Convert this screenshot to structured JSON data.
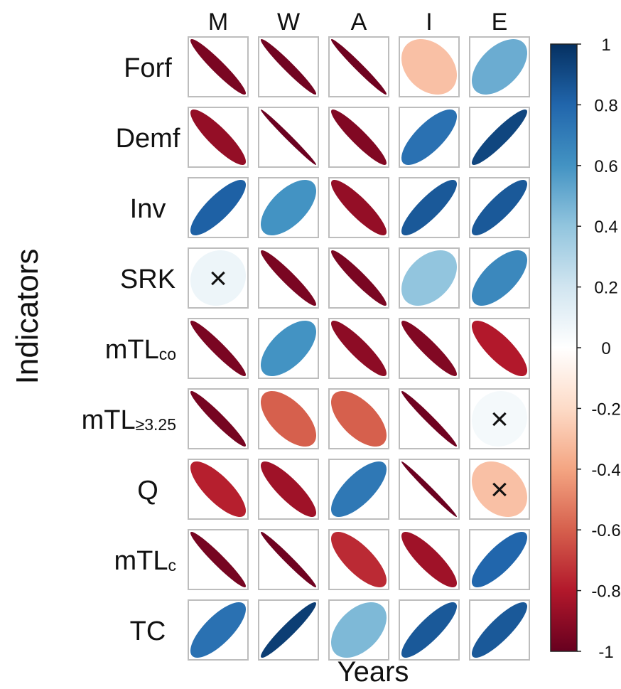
{
  "chart_data": {
    "type": "heatmap",
    "subtype": "correlation-ellipse",
    "xlabel": "Years",
    "ylabel": "Indicators",
    "columns": [
      "M",
      "W",
      "A",
      "I",
      "E"
    ],
    "rows": [
      {
        "label": "Forf",
        "label_sub": ""
      },
      {
        "label": "Demf",
        "label_sub": ""
      },
      {
        "label": "Inv",
        "label_sub": ""
      },
      {
        "label": "SRK",
        "label_sub": ""
      },
      {
        "label": "mTL",
        "label_sub": "co"
      },
      {
        "label": "mTL",
        "label_sub": "≥3.25"
      },
      {
        "label": "Q",
        "label_sub": ""
      },
      {
        "label": "mTL",
        "label_sub": "c"
      },
      {
        "label": "TC",
        "label_sub": ""
      }
    ],
    "values": [
      [
        -0.95,
        -0.97,
        -0.98,
        -0.3,
        0.5
      ],
      [
        -0.88,
        -0.99,
        -0.93,
        0.75,
        0.92
      ],
      [
        0.82,
        0.6,
        -0.88,
        0.85,
        0.85
      ],
      [
        0.08,
        -0.95,
        -0.95,
        0.4,
        0.65
      ],
      [
        -0.95,
        0.6,
        -0.9,
        -0.93,
        -0.8
      ],
      [
        -0.96,
        -0.6,
        -0.6,
        -0.98,
        0.05
      ],
      [
        -0.78,
        -0.85,
        0.72,
        -0.99,
        -0.3
      ]
    ],
    "values_rest": [
      [
        -0.96,
        -0.98,
        -0.75,
        -0.85,
        0.8
      ],
      [
        0.75,
        0.95,
        0.45,
        0.85,
        0.85
      ]
    ],
    "not_significant": [
      [
        3,
        0
      ],
      [
        5,
        4
      ],
      [
        6,
        4
      ]
    ],
    "not_significant_marker": "×",
    "colorbar": {
      "range": [
        -1,
        1
      ],
      "ticks": [
        "1",
        "0.8",
        "0.6",
        "0.4",
        "0.2",
        "0",
        "-0.2",
        "-0.4",
        "-0.6",
        "-0.8",
        "-1"
      ],
      "colors": [
        "#67001f",
        "#b2182b",
        "#d6604d",
        "#f4a582",
        "#fddbc7",
        "#ffffff",
        "#d1e5f0",
        "#92c5de",
        "#4393c3",
        "#2166ac",
        "#053061"
      ]
    }
  }
}
